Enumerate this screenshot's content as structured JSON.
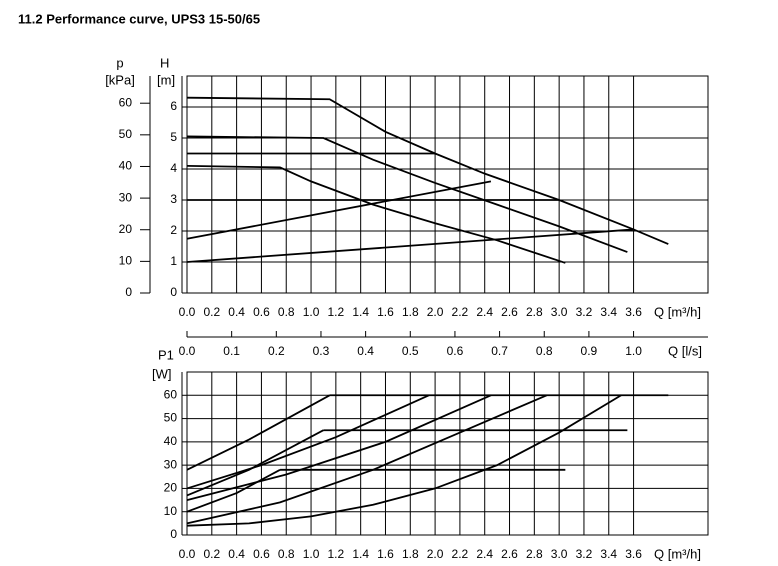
{
  "title": "11.2 Performance curve, UPS3 15-50/65",
  "chart_data": [
    {
      "type": "line",
      "y_label": "H",
      "y_unit": "[m]",
      "y2_label": "p",
      "y2_unit": "[kPa]",
      "x_label": "Q [m³/h]",
      "x2_label": "Q [l/s]",
      "xlim": [
        0,
        4.2
      ],
      "xticks": [
        {
          "value": 0,
          "label": "0.0"
        },
        0.2,
        0.4,
        0.6,
        0.8,
        {
          "value": 1,
          "label": "1.0"
        },
        1.2,
        1.4,
        1.6,
        1.8,
        {
          "value": 2,
          "label": "2.0"
        },
        2.2,
        2.4,
        2.6,
        2.8,
        {
          "value": 3,
          "label": "3.0"
        },
        3.2,
        3.4,
        3.6
      ],
      "x2lim": [
        0,
        1.1667
      ],
      "x2ticks": [
        {
          "value": 0,
          "label": "0.0"
        },
        0.1,
        0.2,
        0.3,
        0.4,
        0.5,
        0.6,
        0.7,
        0.8,
        0.9,
        {
          "value": 1,
          "label": "1.0"
        }
      ],
      "ylim": [
        0,
        7
      ],
      "yticks": [
        0,
        1,
        2,
        3,
        4,
        5,
        6
      ],
      "y2lim": [
        0,
        68.6
      ],
      "y2ticks": [
        0,
        10,
        20,
        30,
        40,
        50,
        60
      ],
      "grid": true,
      "series": [
        {
          "color": "#000000",
          "x": [
            0,
            1.15,
            1.6,
            2.0,
            2.4,
            3.0,
            3.6,
            3.88
          ],
          "values": [
            6.3,
            6.25,
            5.2,
            4.5,
            3.85,
            3.0,
            2.05,
            1.58
          ]
        },
        {
          "color": "#000000",
          "x": [
            0,
            1.1,
            1.5,
            2.0,
            2.5,
            3.0,
            3.55
          ],
          "values": [
            5.05,
            5.0,
            4.3,
            3.55,
            2.85,
            2.15,
            1.32
          ]
        },
        {
          "color": "#000000",
          "x": [
            0,
            0.75,
            1.0,
            1.5,
            2.0,
            2.5,
            3.05
          ],
          "values": [
            4.1,
            4.05,
            3.6,
            2.85,
            2.25,
            1.7,
            0.97
          ]
        },
        {
          "color": "#000000",
          "x": [
            0,
            2.0
          ],
          "values": [
            4.5,
            4.5
          ]
        },
        {
          "color": "#000000",
          "x": [
            0,
            3.0
          ],
          "values": [
            3.0,
            3.0
          ]
        },
        {
          "color": "#000000",
          "x": [
            0,
            2.45
          ],
          "values": [
            1.75,
            3.6
          ]
        },
        {
          "color": "#000000",
          "x": [
            0,
            3.6
          ],
          "values": [
            1.0,
            2.05
          ]
        }
      ]
    },
    {
      "type": "line",
      "y_label": "P1",
      "y_unit": "[W]",
      "x_label": "Q [m³/h]",
      "xlim": [
        0,
        4.2
      ],
      "xticks": [
        {
          "value": 0,
          "label": "0.0"
        },
        0.2,
        0.4,
        0.6,
        0.8,
        {
          "value": 1,
          "label": "1.0"
        },
        1.2,
        1.4,
        1.6,
        1.8,
        {
          "value": 2,
          "label": "2.0"
        },
        2.2,
        2.4,
        2.6,
        2.8,
        {
          "value": 3,
          "label": "3.0"
        },
        3.2,
        3.4,
        3.6
      ],
      "ylim": [
        0,
        70
      ],
      "yticks": [
        0,
        10,
        20,
        30,
        40,
        50,
        60
      ],
      "grid": true,
      "series": [
        {
          "color": "#000000",
          "x": [
            0,
            0.5,
            1.15
          ],
          "values": [
            28,
            41,
            60
          ]
        },
        {
          "color": "#000000",
          "x": [
            0,
            0.6,
            1.2,
            1.95
          ],
          "values": [
            20,
            30,
            42,
            60
          ]
        },
        {
          "color": "#000000",
          "x": [
            0,
            0.5,
            1.1
          ],
          "values": [
            17,
            28,
            45
          ]
        },
        {
          "color": "#000000",
          "x": [
            0,
            0.8,
            1.6,
            2.45
          ],
          "values": [
            15,
            26,
            40,
            60
          ]
        },
        {
          "color": "#000000",
          "x": [
            0,
            0.4,
            0.75
          ],
          "values": [
            10,
            18,
            28
          ]
        },
        {
          "color": "#000000",
          "x": [
            0,
            0.75,
            1.5,
            2.2,
            2.9
          ],
          "values": [
            5,
            14,
            28,
            44,
            60
          ]
        },
        {
          "color": "#000000",
          "x": [
            0,
            0.5,
            1.0,
            1.5,
            2.0,
            2.5,
            3.0,
            3.5
          ],
          "values": [
            4,
            5,
            8,
            13,
            20,
            30,
            44,
            60
          ]
        },
        {
          "color": "#000000",
          "x": [
            1.15,
            3.88
          ],
          "values": [
            60,
            60
          ]
        },
        {
          "color": "#000000",
          "x": [
            1.1,
            3.55
          ],
          "values": [
            45,
            45
          ]
        },
        {
          "color": "#000000",
          "x": [
            0.75,
            3.05
          ],
          "values": [
            28,
            28
          ]
        }
      ]
    }
  ]
}
